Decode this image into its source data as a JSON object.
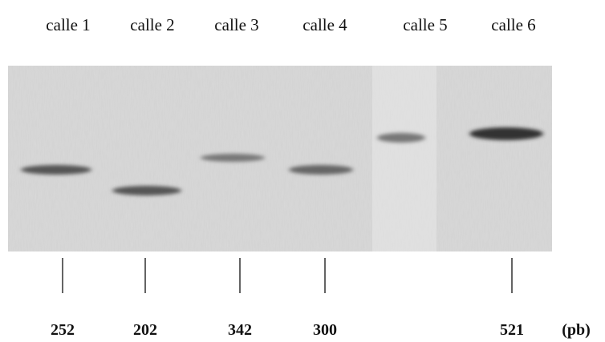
{
  "lanes": [
    {
      "label": "calle 1",
      "size": 252
    },
    {
      "label": "calle 2",
      "size": 202
    },
    {
      "label": "calle 3",
      "size": 342
    },
    {
      "label": "calle 4",
      "size": 300
    },
    {
      "label": "calle 5"
    },
    {
      "label": "calle 6",
      "size": 521
    }
  ],
  "unit": "(pb)"
}
